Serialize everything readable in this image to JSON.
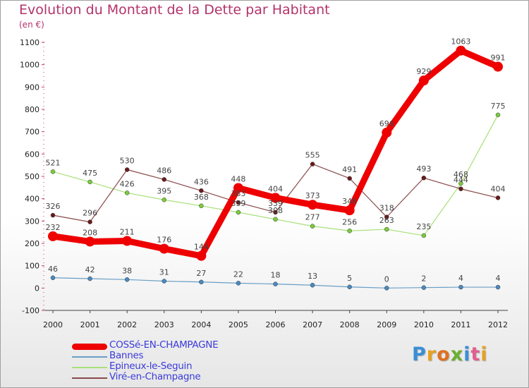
{
  "chart_data": {
    "type": "line",
    "title": "Evolution du Montant de la Dette par Habitant",
    "subtitle": "(en €)",
    "xlabel": "",
    "ylabel": "",
    "ylim": [
      -100,
      1100
    ],
    "y_ticks": [
      -100,
      0,
      100,
      200,
      300,
      400,
      500,
      600,
      700,
      800,
      900,
      1000,
      1100
    ],
    "categories": [
      "2000",
      "2001",
      "2002",
      "2003",
      "2004",
      "2005",
      "2006",
      "2007",
      "2008",
      "2009",
      "2010",
      "2011",
      "2012"
    ],
    "series": [
      {
        "name": "COSSé-EN-CHAMPAGNE",
        "color": "#ee0000",
        "marker_color": "#ee0000",
        "values": [
          232,
          208,
          211,
          176,
          144,
          448,
          404,
          373,
          348,
          696,
          929,
          1063,
          991
        ]
      },
      {
        "name": "Bannes",
        "color": "#6a9ec6",
        "marker_color": "#4a8ac0",
        "values": [
          46,
          42,
          38,
          31,
          27,
          22,
          18,
          13,
          5,
          0,
          2,
          4,
          4
        ]
      },
      {
        "name": "Epineux-le-Seguin",
        "color": "#a8e07a",
        "marker_color": "#7bcc3c",
        "values": [
          521,
          475,
          426,
          395,
          368,
          339,
          308,
          277,
          256,
          263,
          235,
          468,
          775
        ]
      },
      {
        "name": "Viré-en-Champagne",
        "color": "#8a4a4a",
        "marker_color": "#6a1a1a",
        "values": [
          326,
          296,
          530,
          486,
          436,
          383,
          339,
          555,
          491,
          318,
          493,
          444,
          404
        ]
      }
    ],
    "legend_position": "bottom-left",
    "grid": false
  },
  "legend": {
    "items": [
      "COSSé-EN-CHAMPAGNE",
      "Bannes",
      "Epineux-le-Seguin",
      "Viré-en-Champagne"
    ],
    "text_colors": [
      "#3b3bdb",
      "#3b3bdb",
      "#3b3bdb",
      "#3b3bdb"
    ]
  },
  "logo": {
    "letters": [
      "P",
      "r",
      "o",
      "x",
      "i",
      "t",
      "i"
    ],
    "colors": [
      "#3a8fd6",
      "#e8a020",
      "#e07020",
      "#6ab030",
      "#3a8fd6",
      "#e06090",
      "#e8a020"
    ]
  }
}
